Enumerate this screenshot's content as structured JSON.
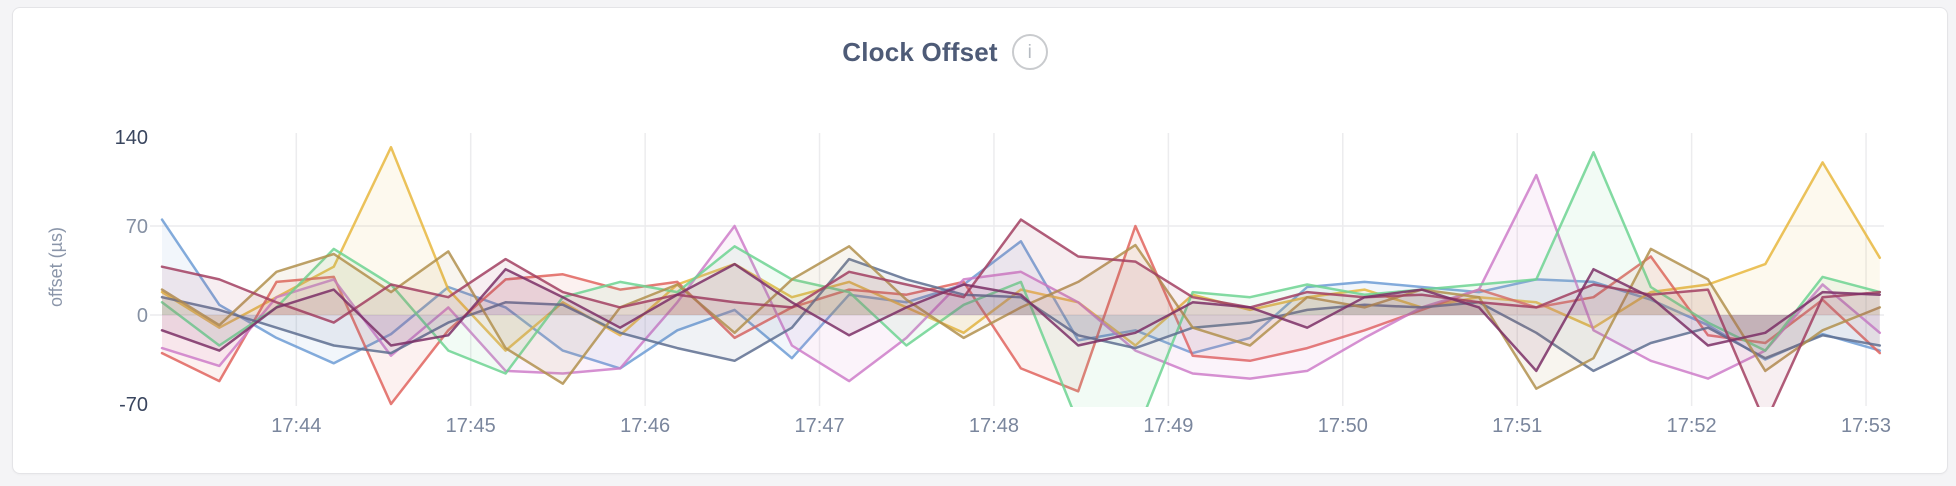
{
  "header": {
    "title": "Clock Offset",
    "info_icon_glyph": "i"
  },
  "colors": {
    "page_bg": "#f4f4f6",
    "card_bg": "#ffffff",
    "card_border": "#e4e4e7",
    "title_text": "#4e5b77",
    "gridline": "#ececee",
    "y_tick_emphasis": "#39455e",
    "y_tick_normal": "#8590a3",
    "x_tick": "#7a869d",
    "axis_label": "#8a95a9",
    "info_icon_border": "#c9cbce",
    "info_icon_glyph": "#b6bbc2"
  },
  "chart_data": {
    "type": "line",
    "title": "Clock Offset",
    "xlabel": "",
    "ylabel": "offset (µs)",
    "ylim": [
      -70,
      140
    ],
    "grid": true,
    "legend": "none",
    "line_width": 2.5,
    "line_opacity": 0.85,
    "area_to_zero": true,
    "area_opacity": 0.09,
    "x_domain_min": [
      43.23,
      53.08
    ],
    "x_start_min": 43.23,
    "x_step_min": 0.3283,
    "x_ticks": [
      {
        "label": "17:44",
        "minute": 44
      },
      {
        "label": "17:45",
        "minute": 45
      },
      {
        "label": "17:46",
        "minute": 46
      },
      {
        "label": "17:47",
        "minute": 47
      },
      {
        "label": "17:48",
        "minute": 48
      },
      {
        "label": "17:49",
        "minute": 49
      },
      {
        "label": "17:50",
        "minute": 50
      },
      {
        "label": "17:51",
        "minute": 51
      },
      {
        "label": "17:52",
        "minute": 52
      },
      {
        "label": "17:53",
        "minute": 53
      }
    ],
    "y_ticks": [
      {
        "label": "140",
        "value": 140,
        "emphasis": true,
        "gridline": false
      },
      {
        "label": "70",
        "value": 70,
        "emphasis": false,
        "gridline": true
      },
      {
        "label": "0",
        "value": 0,
        "emphasis": false,
        "gridline": true
      },
      {
        "label": "-70",
        "value": -70,
        "emphasis": true,
        "gridline": false
      }
    ],
    "series": [
      {
        "color": "#6d9cd5",
        "values": [
          75,
          8,
          -18,
          -38,
          -15,
          22,
          6,
          -28,
          -42,
          -12,
          4,
          -34,
          16,
          10,
          24,
          58,
          -20,
          -12,
          -30,
          -18,
          22,
          26,
          22,
          18,
          28,
          26,
          12,
          -8,
          -35,
          -15,
          -28
        ]
      },
      {
        "color": "#e8b73e",
        "values": [
          18,
          -10,
          14,
          38,
          132,
          20,
          -28,
          10,
          -16,
          24,
          40,
          14,
          26,
          6,
          -14,
          20,
          10,
          -24,
          16,
          4,
          14,
          20,
          6,
          14,
          10,
          -10,
          18,
          24,
          40,
          120,
          45
        ]
      },
      {
        "color": "#e0645e",
        "values": [
          -30,
          -52,
          26,
          30,
          -70,
          -12,
          28,
          32,
          20,
          26,
          -18,
          6,
          20,
          16,
          26,
          -42,
          -60,
          70,
          -32,
          -36,
          -26,
          -12,
          4,
          20,
          6,
          14,
          46,
          -16,
          -22,
          12,
          -30
        ]
      },
      {
        "color": "#ce7cc9",
        "values": [
          -26,
          -40,
          14,
          28,
          -32,
          6,
          -44,
          -46,
          -42,
          10,
          70,
          -24,
          -52,
          -18,
          28,
          34,
          10,
          -28,
          -46,
          -50,
          -44,
          -18,
          6,
          20,
          110,
          -12,
          -36,
          -50,
          -28,
          24,
          -14
        ]
      },
      {
        "color": "#6dd492",
        "values": [
          10,
          -24,
          6,
          52,
          24,
          -28,
          -46,
          14,
          26,
          18,
          54,
          28,
          18,
          -24,
          8,
          26,
          -85,
          -95,
          18,
          14,
          24,
          16,
          20,
          24,
          28,
          128,
          22,
          -6,
          -28,
          30,
          18
        ]
      },
      {
        "color": "#5e6f90",
        "values": [
          14,
          4,
          -10,
          -24,
          -30,
          -6,
          10,
          8,
          -14,
          -26,
          -36,
          -10,
          44,
          28,
          16,
          14,
          -16,
          -26,
          -10,
          -6,
          4,
          8,
          6,
          10,
          -14,
          -44,
          -22,
          -10,
          -34,
          -16,
          -24
        ]
      },
      {
        "color": "#b1904e",
        "values": [
          20,
          -8,
          34,
          48,
          18,
          50,
          -26,
          -54,
          6,
          24,
          -14,
          28,
          54,
          12,
          -18,
          6,
          26,
          55,
          -10,
          -24,
          14,
          6,
          20,
          14,
          -58,
          -34,
          52,
          28,
          -44,
          -12,
          6
        ]
      },
      {
        "color": "#a23f61",
        "values": [
          38,
          28,
          10,
          -6,
          24,
          14,
          44,
          18,
          6,
          16,
          10,
          6,
          34,
          24,
          14,
          75,
          46,
          42,
          14,
          6,
          18,
          14,
          16,
          10,
          6,
          24,
          16,
          20,
          -85,
          14,
          18
        ]
      },
      {
        "color": "#7b2f66",
        "values": [
          -12,
          -28,
          6,
          20,
          -24,
          -16,
          36,
          14,
          -10,
          16,
          40,
          10,
          -16,
          6,
          24,
          16,
          -24,
          -14,
          10,
          6,
          -10,
          14,
          20,
          6,
          -44,
          36,
          14,
          -24,
          -14,
          18,
          16
        ]
      }
    ]
  }
}
